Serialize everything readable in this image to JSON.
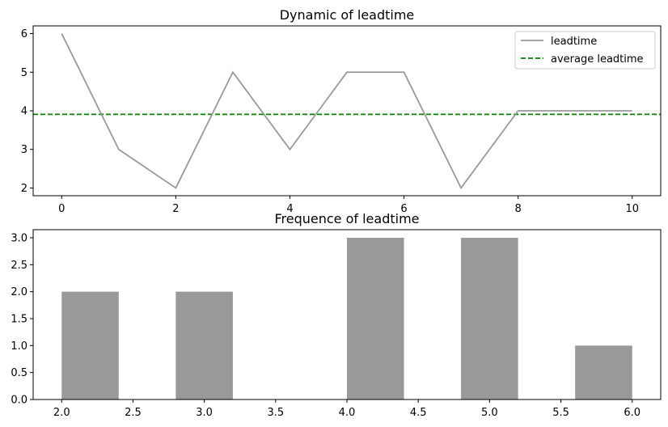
{
  "chart_data": [
    {
      "type": "line",
      "title": "Dynamic of leadtime",
      "xlabel": "",
      "ylabel": "",
      "x": [
        0,
        1,
        2,
        3,
        4,
        5,
        6,
        7,
        8,
        9,
        10
      ],
      "series": [
        {
          "name": "leadtime",
          "values": [
            6,
            3,
            2,
            5,
            3,
            5,
            5,
            2,
            4,
            4,
            4
          ],
          "color": "#999999",
          "style": "solid"
        }
      ],
      "hlines": [
        {
          "name": "average leadtime",
          "value": 3.909,
          "color": "#008000",
          "style": "dashed"
        }
      ],
      "xlim": [
        -0.5,
        10.5
      ],
      "ylim": [
        1.8,
        6.2
      ],
      "xticks": [
        0,
        2,
        4,
        6,
        8,
        10
      ],
      "xtick_labels": [
        "0",
        "2",
        "4",
        "6",
        "8",
        "10"
      ],
      "yticks": [
        2,
        3,
        4,
        5,
        6
      ],
      "ytick_labels": [
        "2",
        "3",
        "4",
        "5",
        "6"
      ],
      "legend": {
        "placement": "upper right",
        "entries": [
          "leadtime",
          "average leadtime"
        ]
      },
      "grid": false
    },
    {
      "type": "bar",
      "title": "Frequence of leadtime",
      "xlabel": "",
      "ylabel": "",
      "bins": [
        {
          "start": 2.0,
          "end": 2.4,
          "count": 2
        },
        {
          "start": 2.4,
          "end": 2.8,
          "count": 0
        },
        {
          "start": 2.8,
          "end": 3.2,
          "count": 2
        },
        {
          "start": 3.2,
          "end": 3.6,
          "count": 0
        },
        {
          "start": 3.6,
          "end": 4.0,
          "count": 0
        },
        {
          "start": 4.0,
          "end": 4.4,
          "count": 3
        },
        {
          "start": 4.4,
          "end": 4.8,
          "count": 0
        },
        {
          "start": 4.8,
          "end": 5.2,
          "count": 3
        },
        {
          "start": 5.2,
          "end": 5.6,
          "count": 0
        },
        {
          "start": 5.6,
          "end": 6.0,
          "count": 1
        }
      ],
      "color": "#999999",
      "xlim": [
        1.8,
        6.2
      ],
      "ylim": [
        0,
        3.15
      ],
      "xticks": [
        2.0,
        2.5,
        3.0,
        3.5,
        4.0,
        4.5,
        5.0,
        5.5,
        6.0
      ],
      "xtick_labels": [
        "2.0",
        "2.5",
        "3.0",
        "3.5",
        "4.0",
        "4.5",
        "5.0",
        "5.5",
        "6.0"
      ],
      "yticks": [
        0,
        0.5,
        1.0,
        1.5,
        2.0,
        2.5,
        3.0
      ],
      "ytick_labels": [
        "0.0",
        "0.5",
        "1.0",
        "1.5",
        "2.0",
        "2.5",
        "3.0"
      ],
      "grid": false
    }
  ]
}
